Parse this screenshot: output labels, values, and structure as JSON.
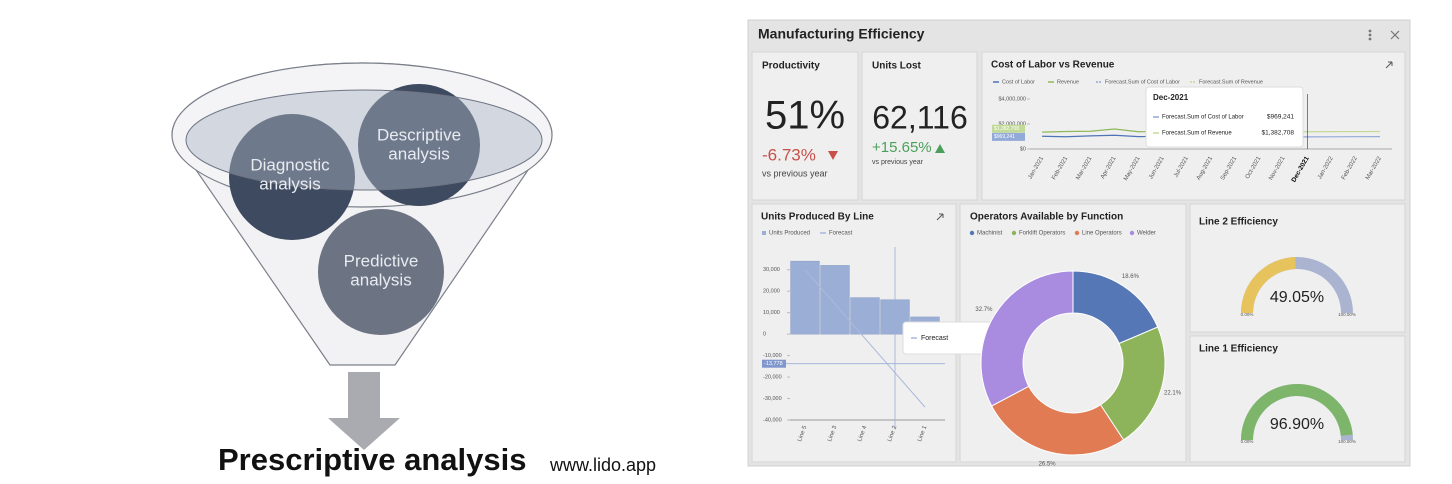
{
  "funnel": {
    "circles": [
      {
        "lines": [
          "Diagnostic",
          "analysis"
        ]
      },
      {
        "lines": [
          "Descriptive",
          "analysis"
        ]
      },
      {
        "lines": [
          "Predictive",
          "analysis"
        ]
      }
    ],
    "result": "Prescriptive analysis",
    "source": "www.lido.app"
  },
  "dashboard": {
    "title": "Manufacturing Efficiency",
    "kpis": [
      {
        "title": "Productivity",
        "value": "51%",
        "change": "-6.73%",
        "note": "vs previous year"
      },
      {
        "title": "Units Lost",
        "value": "62,116",
        "change": "+15.65%",
        "note": "vs previous year"
      }
    ]
  },
  "chart_data": [
    {
      "type": "line",
      "title": "Cost of Labor vs Revenue",
      "categories": [
        "Jan-2021",
        "Feb-2021",
        "Mar-2021",
        "Apr-2021",
        "May-2021",
        "Jun-2021",
        "Jul-2021",
        "Aug-2021",
        "Sep-2021",
        "Oct-2021",
        "Nov-2021",
        "Dec-2021",
        "Jan-2022",
        "Feb-2022",
        "Mar-2022"
      ],
      "ylim": [
        0,
        4000000
      ],
      "yticks": [
        {
          "value": 0,
          "label": "$0"
        },
        {
          "value": 2000000,
          "label": "$2,000,000"
        },
        {
          "value": 4000000,
          "label": "$4,000,000"
        }
      ],
      "tooltip_category": 11,
      "series": [
        {
          "name": "Cost of Labor",
          "color": "#4f74b8",
          "values": [
            1020000,
            980000,
            1050000,
            1100000,
            990000,
            1010000,
            1040000,
            1000000,
            1060000,
            1030000,
            980000,
            null,
            null,
            null,
            null
          ]
        },
        {
          "name": "Revenue",
          "color": "#8fb85a",
          "values": [
            1350000,
            1400000,
            1420000,
            1600000,
            1380000,
            1410000,
            1450000,
            1390000,
            1430000,
            1440000,
            1400000,
            null,
            null,
            null,
            null
          ]
        },
        {
          "name": "Forecast.Sum of Cost of Labor",
          "color": "#93a9d8",
          "values": [
            null,
            null,
            null,
            null,
            null,
            null,
            null,
            null,
            null,
            null,
            980000,
            969241,
            975000,
            985000,
            990000
          ],
          "value_labels": [
            null,
            null,
            null,
            null,
            null,
            null,
            null,
            null,
            null,
            null,
            null,
            "$969,241",
            null,
            null,
            null
          ]
        },
        {
          "name": "Forecast.Sum of Revenue",
          "color": "#c2da98",
          "values": [
            null,
            null,
            null,
            null,
            null,
            null,
            null,
            null,
            null,
            null,
            1400000,
            1382708,
            1390000,
            1395000,
            1400000
          ],
          "value_labels": [
            null,
            null,
            null,
            null,
            null,
            null,
            null,
            null,
            null,
            null,
            null,
            "$1,382,708",
            null,
            null,
            null
          ]
        }
      ]
    },
    {
      "type": "bar",
      "title": "Units Produced By Line",
      "categories": [
        "Line 5",
        "Line 3",
        "Line 4",
        "Line 2",
        "Line 1"
      ],
      "ylim": [
        -40000,
        35000
      ],
      "yticks": [
        {
          "value": -40000,
          "label": "-40,000"
        },
        {
          "value": -30000,
          "label": "-30,000"
        },
        {
          "value": -20000,
          "label": "-20,000"
        },
        {
          "value": -10000,
          "label": "-10,000"
        },
        0,
        {
          "value": 10000,
          "label": "10,000"
        },
        {
          "value": 20000,
          "label": "20,000"
        },
        {
          "value": 30000,
          "label": "30,000"
        }
      ],
      "series": [
        {
          "name": "Units Produced",
          "color": "#9bafd6",
          "values": [
            34000,
            32000,
            17000,
            16000,
            8000
          ]
        },
        {
          "name": "Forecast",
          "type": "line",
          "color": "#a9b9dc",
          "values": [
            30000,
            14000,
            -2000,
            -18000,
            -34000
          ]
        }
      ],
      "tooltip": {
        "name": "Forecast",
        "value": -13778,
        "label": "-13,778"
      }
    },
    {
      "type": "pie",
      "title": "Operators Available by Function",
      "categories": [
        "Machinist",
        "Forklift Operators",
        "Line Operators",
        "Welder"
      ],
      "values": [
        18.6,
        22.1,
        26.5,
        32.7
      ],
      "value_labels": [
        "18.6%",
        "22.1%",
        "26.5%",
        "32.7%"
      ],
      "colors": [
        "#5577b6",
        "#8db45a",
        "#e07b54",
        "#a98ce0"
      ]
    },
    {
      "type": "gauge",
      "title": "Line 2 Efficiency",
      "value": 49.05,
      "value_label": "49.05%",
      "ylim": [
        0,
        100
      ],
      "yticks": [
        {
          "value": 0,
          "label": "0.00%"
        },
        {
          "value": 100,
          "label": "100.00%"
        }
      ],
      "color": "#e6c35c"
    },
    {
      "type": "gauge",
      "title": "Line 1 Efficiency",
      "value": 96.9,
      "value_label": "96.90%",
      "ylim": [
        0,
        100
      ],
      "yticks": [
        {
          "value": 0,
          "label": "0.00%"
        },
        {
          "value": 100,
          "label": "100.00%"
        }
      ],
      "color": "#7db56a"
    }
  ]
}
